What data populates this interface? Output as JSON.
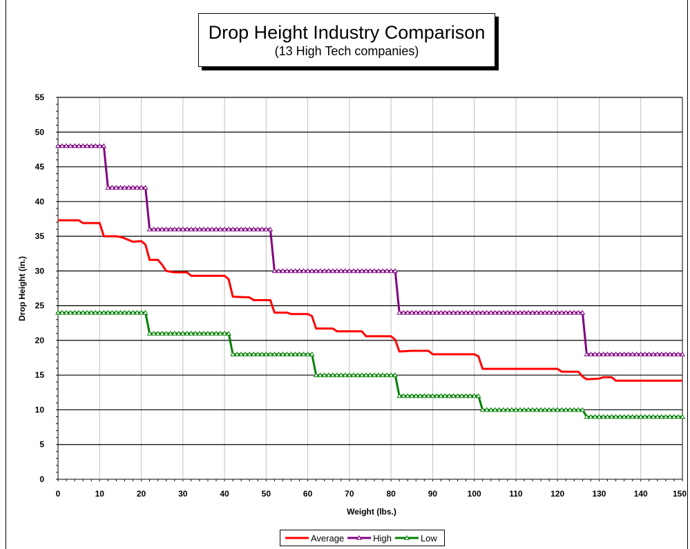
{
  "chart_data": {
    "type": "line",
    "title": "Drop Height Industry Comparison",
    "subtitle": "(13 High Tech companies)",
    "xlabel": "Weight (lbs.)",
    "ylabel": "Drop Height (in.)",
    "xlim": [
      0,
      150
    ],
    "ylim": [
      0,
      55
    ],
    "xticks": [
      0,
      10,
      20,
      30,
      40,
      50,
      60,
      70,
      80,
      90,
      100,
      110,
      120,
      130,
      140,
      150
    ],
    "yticks": [
      0,
      5,
      10,
      15,
      20,
      25,
      30,
      35,
      40,
      45,
      50,
      55
    ],
    "grid": true,
    "legend_position": "bottom",
    "series": [
      {
        "name": "Average",
        "color": "#ff0000",
        "marker": "none",
        "points": [
          [
            0,
            37.3
          ],
          [
            5,
            37.3
          ],
          [
            6,
            36.9
          ],
          [
            10,
            36.9
          ],
          [
            11,
            35
          ],
          [
            12,
            35
          ],
          [
            14,
            35
          ],
          [
            15,
            34.9
          ],
          [
            16,
            34.7
          ],
          [
            18,
            34.2
          ],
          [
            20,
            34.3
          ],
          [
            21,
            33.8
          ],
          [
            22,
            31.6
          ],
          [
            24,
            31.6
          ],
          [
            25,
            30.9
          ],
          [
            26,
            30.0
          ],
          [
            28,
            29.8
          ],
          [
            31,
            29.8
          ],
          [
            32,
            29.3
          ],
          [
            40,
            29.3
          ],
          [
            41,
            28.8
          ],
          [
            42,
            26.3
          ],
          [
            46,
            26.2
          ],
          [
            47,
            25.8
          ],
          [
            50,
            25.8
          ],
          [
            51,
            25.8
          ],
          [
            52,
            24.0
          ],
          [
            55,
            24.0
          ],
          [
            56,
            23.8
          ],
          [
            60,
            23.8
          ],
          [
            61,
            23.5
          ],
          [
            62,
            21.7
          ],
          [
            66,
            21.7
          ],
          [
            67,
            21.3
          ],
          [
            73,
            21.3
          ],
          [
            74,
            20.6
          ],
          [
            80,
            20.6
          ],
          [
            81,
            20.1
          ],
          [
            82,
            18.4
          ],
          [
            85,
            18.5
          ],
          [
            89,
            18.5
          ],
          [
            90,
            18.0
          ],
          [
            100,
            18.0
          ],
          [
            101,
            17.7
          ],
          [
            102,
            15.9
          ],
          [
            120,
            15.9
          ],
          [
            121,
            15.5
          ],
          [
            125,
            15.5
          ],
          [
            126,
            14.8
          ],
          [
            127,
            14.4
          ],
          [
            130,
            14.5
          ],
          [
            131,
            14.7
          ],
          [
            133,
            14.7
          ],
          [
            134,
            14.2
          ],
          [
            150,
            14.2
          ]
        ]
      },
      {
        "name": "High",
        "color": "#800080",
        "marker": "triangle",
        "points": [
          [
            0,
            48
          ],
          [
            11,
            48
          ],
          [
            12,
            42
          ],
          [
            21,
            42
          ],
          [
            22,
            36
          ],
          [
            51,
            36
          ],
          [
            52,
            30
          ],
          [
            81,
            30
          ],
          [
            82,
            24
          ],
          [
            126,
            24
          ],
          [
            127,
            18
          ],
          [
            150,
            18
          ]
        ]
      },
      {
        "name": "Low",
        "color": "#008000",
        "marker": "triangle",
        "points": [
          [
            0,
            24
          ],
          [
            21,
            24
          ],
          [
            22,
            21
          ],
          [
            41,
            21
          ],
          [
            42,
            18
          ],
          [
            61,
            18
          ],
          [
            62,
            15
          ],
          [
            81,
            15
          ],
          [
            82,
            12
          ],
          [
            101,
            12
          ],
          [
            102,
            10
          ],
          [
            126,
            10
          ],
          [
            127,
            9
          ],
          [
            150,
            9
          ]
        ]
      }
    ]
  }
}
